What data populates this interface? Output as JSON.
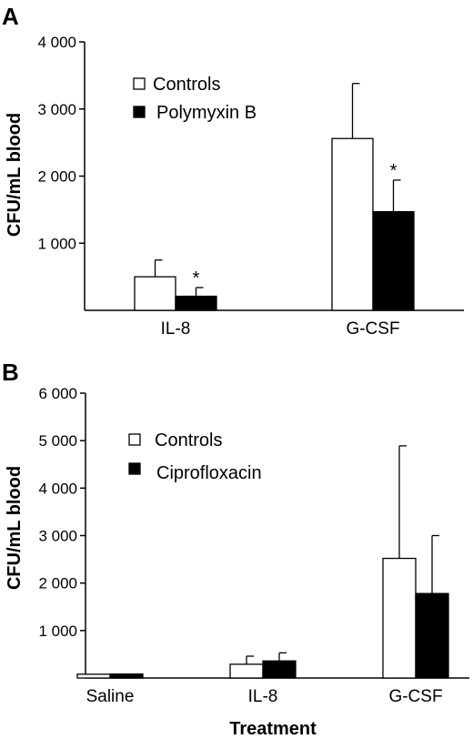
{
  "chart_data": [
    {
      "panel": "A",
      "type": "bar",
      "categories": [
        "IL-8",
        "G-CSF"
      ],
      "series": [
        {
          "name": "Controls",
          "values": [
            500,
            2560
          ],
          "errors": [
            250,
            820
          ],
          "color": "#ffffff"
        },
        {
          "name": "Polymyxin B",
          "values": [
            210,
            1470
          ],
          "errors": [
            130,
            470
          ],
          "color": "#000000"
        }
      ],
      "significance": [
        {
          "category": "IL-8",
          "series": "Polymyxin B",
          "mark": "*"
        },
        {
          "category": "G-CSF",
          "series": "Polymyxin B",
          "mark": "*"
        }
      ],
      "ylabel": "CFU/mL blood",
      "xlabel": "",
      "ylim": [
        0,
        4000
      ],
      "yticks": [
        1000,
        2000,
        3000,
        4000
      ],
      "ytick_labels": [
        "1 000",
        "2 000",
        "3 000",
        "4 000"
      ],
      "legend_position": "top-left"
    },
    {
      "panel": "B",
      "type": "bar",
      "categories": [
        "Saline",
        "IL-8",
        "G-CSF"
      ],
      "series": [
        {
          "name": "Controls",
          "values": [
            80,
            290,
            2520
          ],
          "errors": [
            0,
            170,
            2370
          ],
          "color": "#ffffff"
        },
        {
          "name": "Ciprofloxacin",
          "values": [
            85,
            360,
            1780
          ],
          "errors": [
            0,
            170,
            1220
          ],
          "color": "#000000"
        }
      ],
      "significance": [],
      "ylabel": "CFU/mL blood",
      "xlabel": "Treatment",
      "ylim": [
        0,
        6000
      ],
      "yticks": [
        1000,
        2000,
        3000,
        4000,
        5000,
        6000
      ],
      "ytick_labels": [
        "1 000",
        "2 000",
        "3 000",
        "4 000",
        "5 000",
        "6 000"
      ],
      "legend_position": "top-left"
    }
  ]
}
